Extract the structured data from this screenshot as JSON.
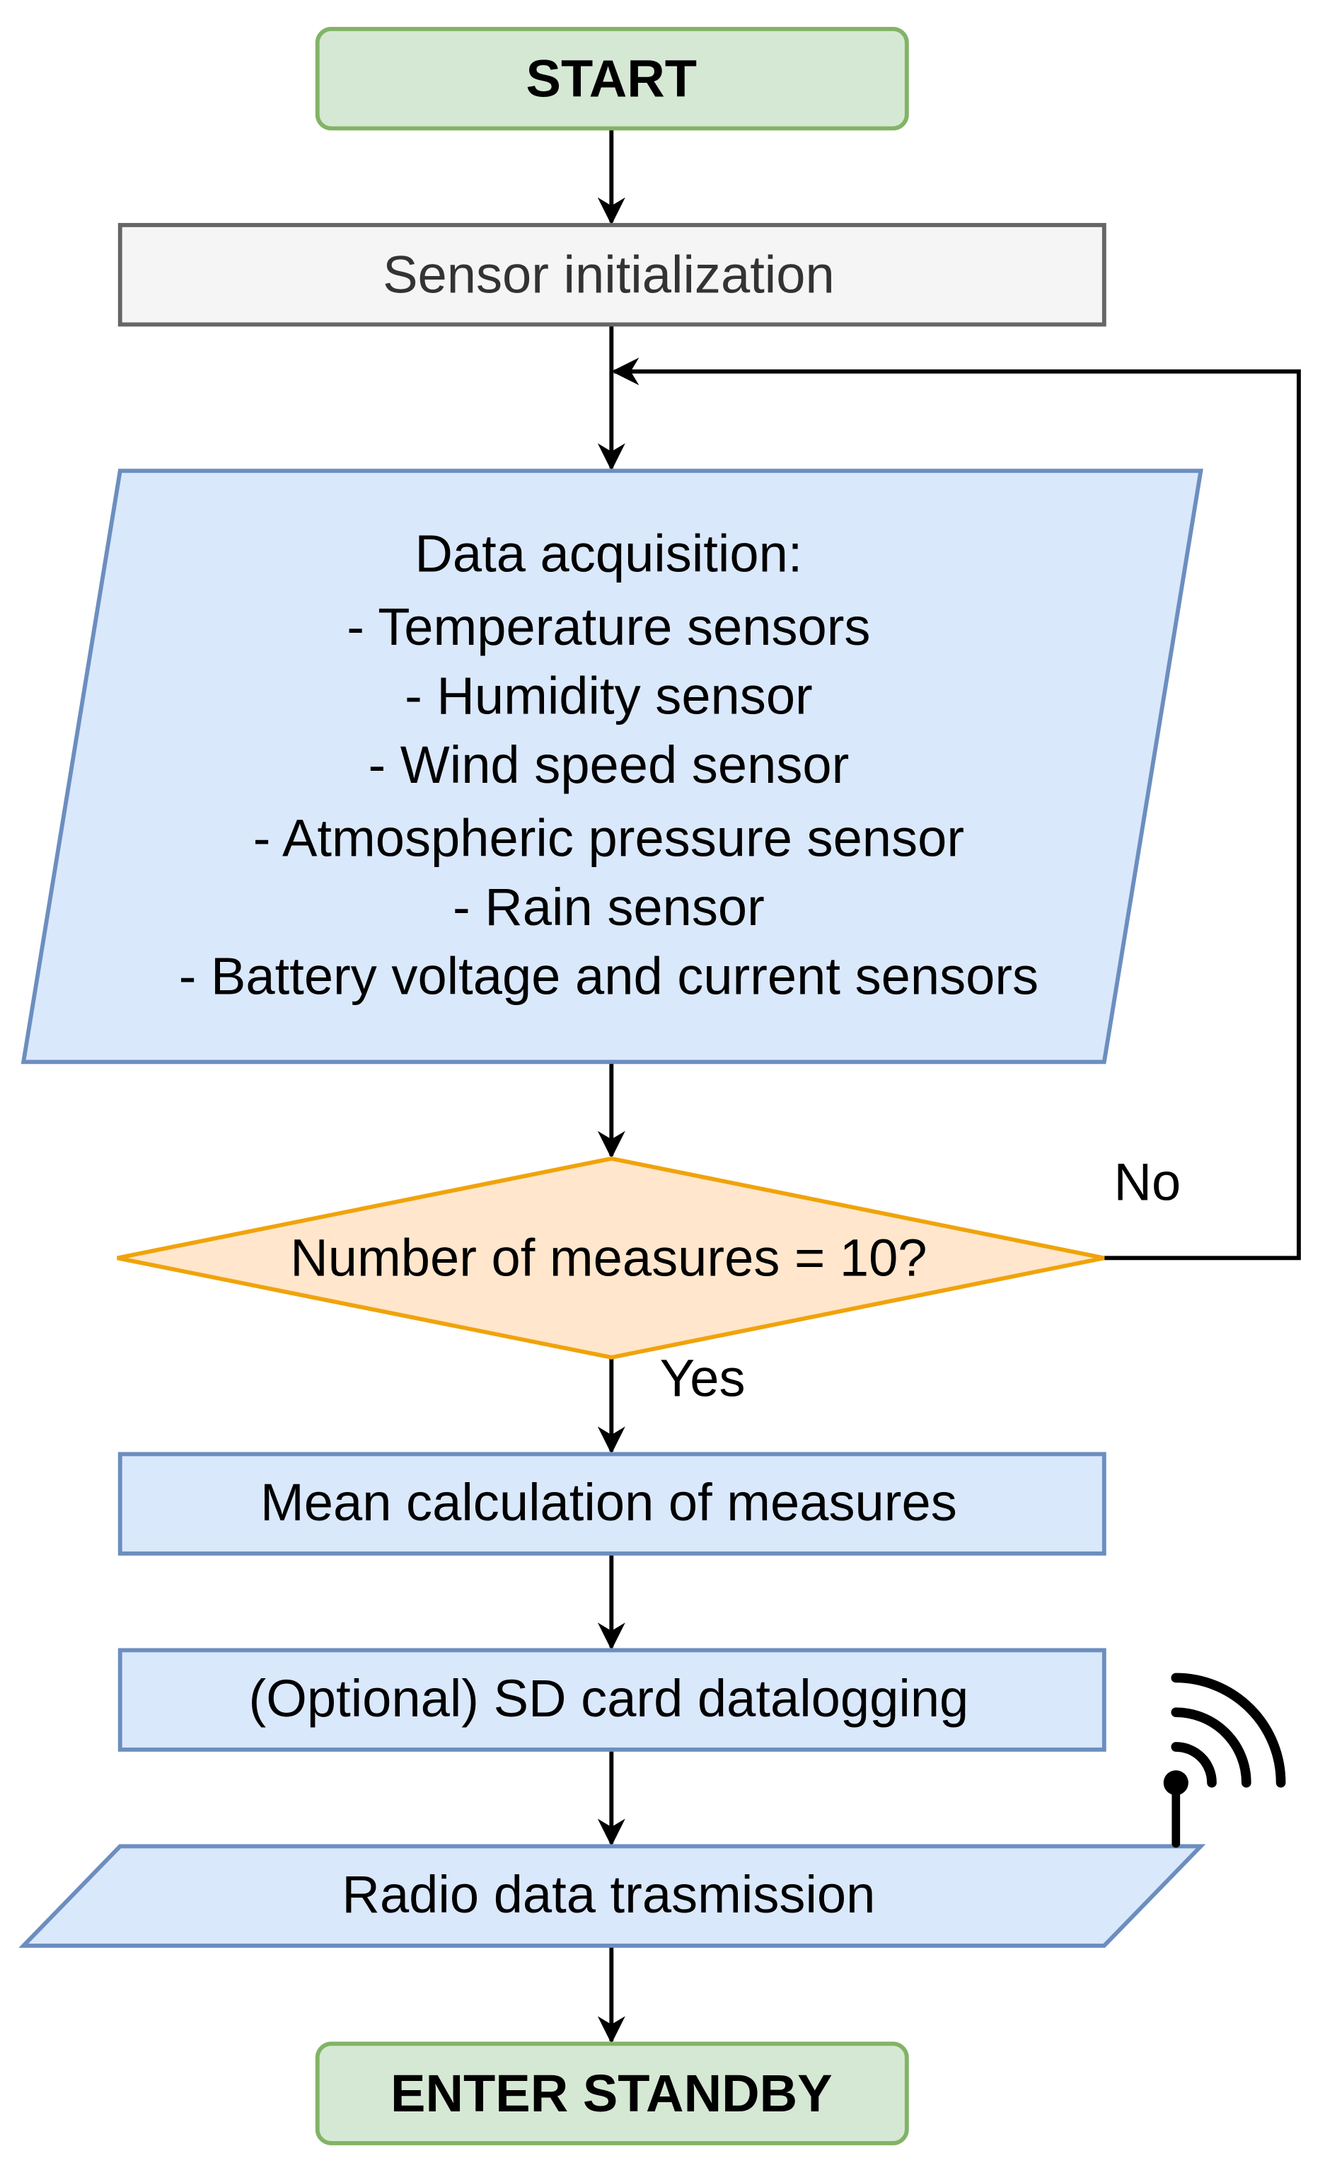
{
  "flowchart": {
    "start": "START",
    "init": "Sensor initialization",
    "acquisition": {
      "title": "Data acquisition:",
      "items": [
        "- Temperature sensors",
        "- Humidity sensor",
        "- Wind speed sensor",
        "- Atmospheric pressure sensor",
        "- Rain sensor",
        "- Battery voltage and current sensors"
      ]
    },
    "decision": "Number of measures = 10?",
    "no_label": "No",
    "yes_label": "Yes",
    "mean": "Mean calculation of measures",
    "sd": "(Optional) SD card datalogging",
    "radio": "Radio data trasmission",
    "end": "ENTER STANDBY",
    "radio_icon": "antenna-signal-icon"
  },
  "colors": {
    "terminal_fill": "#d5e8d4",
    "terminal_stroke": "#82b366",
    "init_fill": "#f5f5f5",
    "init_stroke": "#666666",
    "process_fill": "#dae8fc",
    "process_stroke": "#6c8ebf",
    "decision_fill": "#ffe6cc",
    "decision_stroke": "#f0a30a"
  }
}
